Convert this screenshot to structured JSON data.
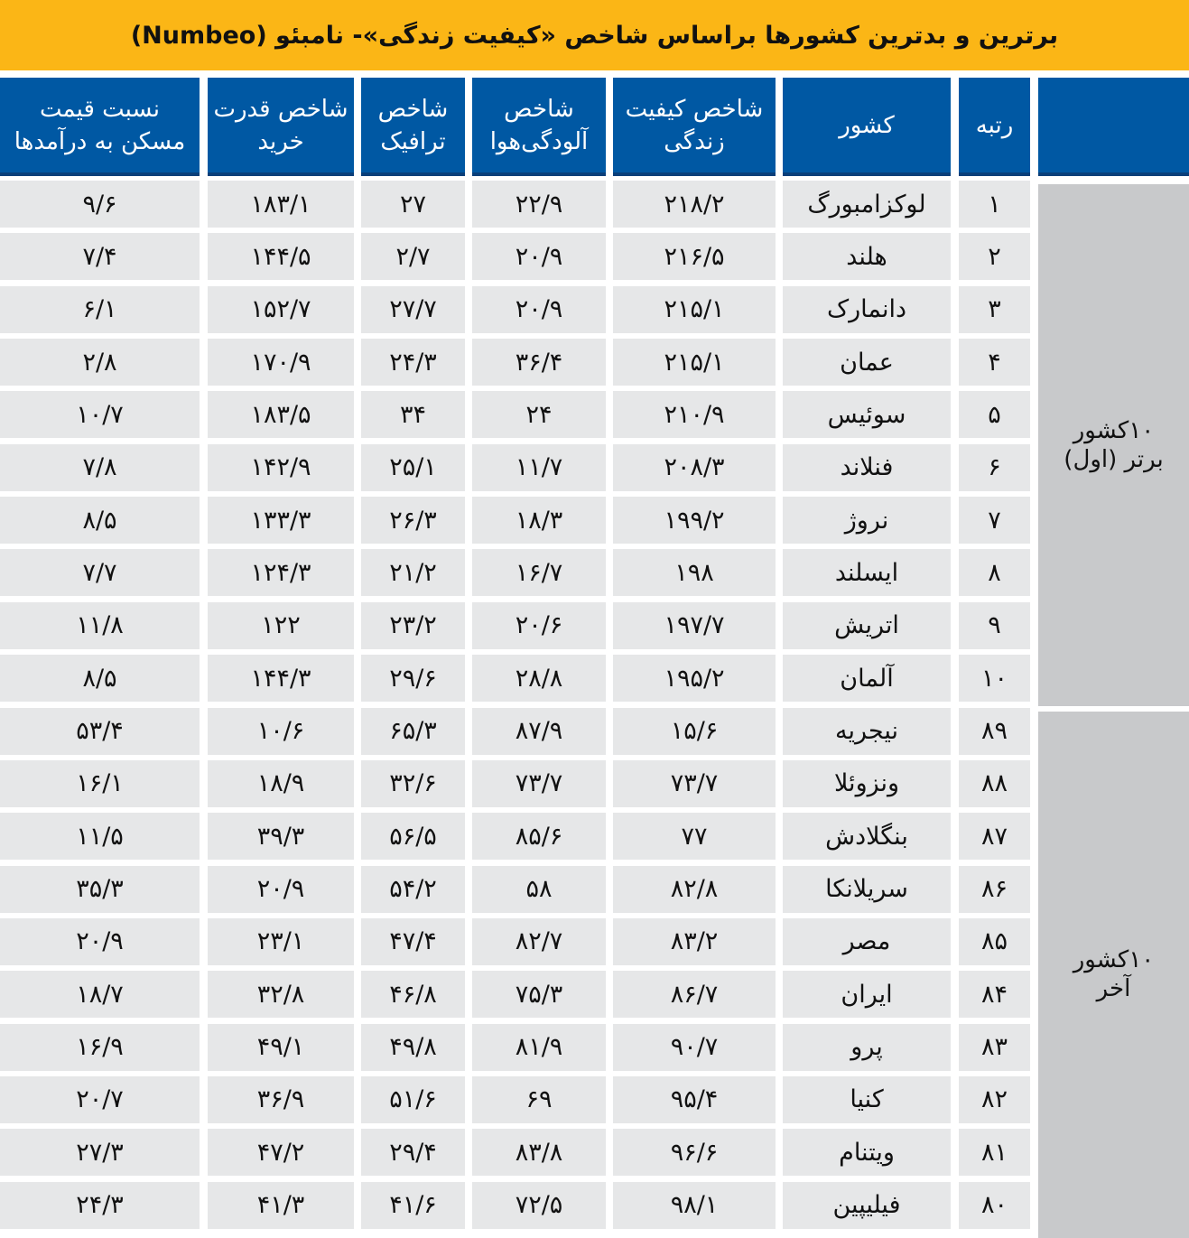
{
  "title": "برترین و بدترین کشورها براساس شاخص «کیفیت زندگی»- نامبئو (Numbeo)",
  "colors": {
    "title_bg": "#fbb616",
    "header_bg": "#0058a3",
    "cell_bg": "#e6e7e8",
    "group_bg": "#c8c9cb"
  },
  "chart_data": {
    "type": "table",
    "title": "برترین و بدترین کشورها براساس شاخص «کیفیت زندگی»- نامبئو (Numbeo)",
    "columns": [
      "",
      "رتبه",
      "کشور",
      "شاخص کیفیت زندگی",
      "شاخص آلودگی‌هوا",
      "شاخص ترافیک",
      "شاخص قدرت خرید",
      "نسبت قیمت مسکن به درآمدها"
    ],
    "groups": [
      {
        "label": "۱۰کشور برتر (اول)",
        "rows": [
          [
            "۱",
            "لوکزامبورگ",
            "۲۱۸/۲",
            "۲۲/۹",
            "۲۷",
            "۱۸۳/۱",
            "۹/۶"
          ],
          [
            "۲",
            "هلند",
            "۲۱۶/۵",
            "۲۰/۹",
            "۲/۷",
            "۱۴۴/۵",
            "۷/۴"
          ],
          [
            "۳",
            "دانمارک",
            "۲۱۵/۱",
            "۲۰/۹",
            "۲۷/۷",
            "۱۵۲/۷",
            "۶/۱"
          ],
          [
            "۴",
            "عمان",
            "۲۱۵/۱",
            "۳۶/۴",
            "۲۴/۳",
            "۱۷۰/۹",
            "۲/۸"
          ],
          [
            "۵",
            "سوئیس",
            "۲۱۰/۹",
            "۲۴",
            "۳۴",
            "۱۸۳/۵",
            "۱۰/۷"
          ],
          [
            "۶",
            "فنلاند",
            "۲۰۸/۳",
            "۱۱/۷",
            "۲۵/۱",
            "۱۴۲/۹",
            "۷/۸"
          ],
          [
            "۷",
            "نروژ",
            "۱۹۹/۲",
            "۱۸/۳",
            "۲۶/۳",
            "۱۳۳/۳",
            "۸/۵"
          ],
          [
            "۸",
            "ایسلند",
            "۱۹۸",
            "۱۶/۷",
            "۲۱/۲",
            "۱۲۴/۳",
            "۷/۷"
          ],
          [
            "۹",
            "اتریش",
            "۱۹۷/۷",
            "۲۰/۶",
            "۲۳/۲",
            "۱۲۲",
            "۱۱/۸"
          ],
          [
            "۱۰",
            "آلمان",
            "۱۹۵/۲",
            "۲۸/۸",
            "۲۹/۶",
            "۱۴۴/۳",
            "۸/۵"
          ]
        ]
      },
      {
        "label": "۱۰کشور آخر",
        "rows": [
          [
            "۸۹",
            "نیجریه",
            "۱۵/۶",
            "۸۷/۹",
            "۶۵/۳",
            "۱۰/۶",
            "۵۳/۴"
          ],
          [
            "۸۸",
            "ونزوئلا",
            "۷۳/۷",
            "۷۳/۷",
            "۳۲/۶",
            "۱۸/۹",
            "۱۶/۱"
          ],
          [
            "۸۷",
            "بنگلادش",
            "۷۷",
            "۸۵/۶",
            "۵۶/۵",
            "۳۹/۳",
            "۱۱/۵"
          ],
          [
            "۸۶",
            "سریلانکا",
            "۸۲/۸",
            "۵۸",
            "۵۴/۲",
            "۲۰/۹",
            "۳۵/۳"
          ],
          [
            "۸۵",
            "مصر",
            "۸۳/۲",
            "۸۲/۷",
            "۴۷/۴",
            "۲۳/۱",
            "۲۰/۹"
          ],
          [
            "۸۴",
            "ایران",
            "۸۶/۷",
            "۷۵/۳",
            "۴۶/۸",
            "۳۲/۸",
            "۱۸/۷"
          ],
          [
            "۸۳",
            "پرو",
            "۹۰/۷",
            "۸۱/۹",
            "۴۹/۸",
            "۴۹/۱",
            "۱۶/۹"
          ],
          [
            "۸۲",
            "کنیا",
            "۹۵/۴",
            "۶۹",
            "۵۱/۶",
            "۳۶/۹",
            "۲۰/۷"
          ],
          [
            "۸۱",
            "ویتنام",
            "۹۶/۶",
            "۸۳/۸",
            "۲۹/۴",
            "۴۷/۲",
            "۲۷/۳"
          ],
          [
            "۸۰",
            "فیلیپین",
            "۹۸/۱",
            "۷۲/۵",
            "۴۱/۶",
            "۴۱/۳",
            "۲۴/۳"
          ]
        ]
      }
    ]
  }
}
